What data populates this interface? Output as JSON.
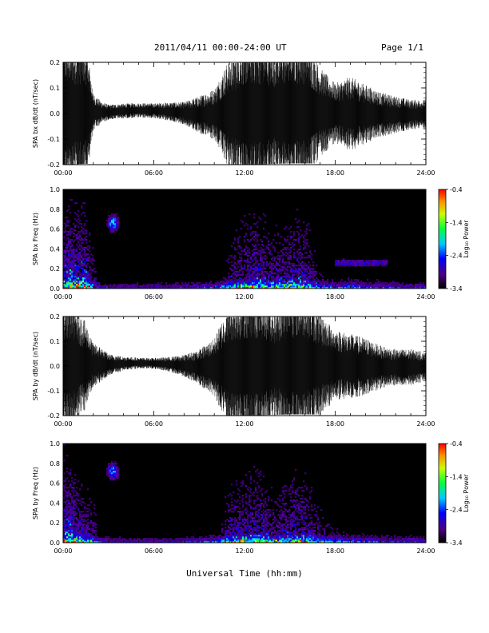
{
  "header": {
    "title": "2011/04/11   00:00-24:00 UT",
    "page": "Page 1/1"
  },
  "xlabel": "Universal Time (hh:mm)",
  "chart_data": [
    {
      "type": "line",
      "ylabel": "SPA bx dB/dt (nT/sec)",
      "ylim": [
        -0.2,
        0.2
      ],
      "yticks": [
        "-0.2",
        "-0.1",
        "0.0",
        "0.1",
        "0.2"
      ],
      "xticks": [
        "00:00",
        "06:00",
        "12:00",
        "18:00",
        "24:00"
      ],
      "xlim_hours": [
        0,
        24
      ],
      "series": [
        {
          "x": [
            0,
            0.5,
            1.0,
            1.5,
            2.0,
            2.5,
            3,
            4,
            5,
            6,
            7,
            8,
            9,
            10,
            11,
            12,
            13,
            14,
            15,
            16,
            17,
            18,
            19,
            20,
            21,
            22,
            23,
            24
          ],
          "values": [
            0.2,
            0.2,
            0.2,
            0.2,
            0.05,
            0.03,
            0.02,
            0.02,
            0.02,
            0.02,
            0.025,
            0.03,
            0.05,
            0.07,
            0.15,
            0.2,
            0.2,
            0.18,
            0.2,
            0.2,
            0.12,
            0.08,
            0.1,
            0.08,
            0.06,
            0.05,
            0.04,
            0.04
          ]
        }
      ]
    },
    {
      "type": "heatmap",
      "ylabel": "SPA bx Freq (Hz)",
      "ylim": [
        0.0,
        1.0
      ],
      "yticks": [
        "0.0",
        "0.2",
        "0.4",
        "0.6",
        "0.8",
        "1.0"
      ],
      "xticks": [
        "00:00",
        "06:00",
        "12:00",
        "18:00",
        "24:00"
      ],
      "xlim_hours": [
        0,
        24
      ],
      "colorbar": {
        "label": "Log₁₀ Power",
        "ticks": [
          "-0.4",
          "-1.4",
          "-2.4",
          "-3.4"
        ],
        "range": [
          -3.4,
          -0.4
        ]
      }
    },
    {
      "type": "line",
      "ylabel": "SPA by dB/dt (nT/sec)",
      "ylim": [
        -0.2,
        0.2
      ],
      "yticks": [
        "-0.2",
        "-0.1",
        "0.0",
        "0.1",
        "0.2"
      ],
      "xticks": [
        "00:00",
        "06:00",
        "12:00",
        "18:00",
        "24:00"
      ],
      "xlim_hours": [
        0,
        24
      ],
      "series": [
        {
          "x": [
            0,
            0.5,
            1.0,
            1.5,
            2.0,
            2.5,
            3,
            4,
            5,
            6,
            7,
            8,
            9,
            10,
            11,
            12,
            13,
            14,
            15,
            16,
            17,
            18,
            19,
            20,
            21,
            22,
            23,
            24
          ],
          "values": [
            0.2,
            0.2,
            0.15,
            0.12,
            0.06,
            0.05,
            0.03,
            0.02,
            0.015,
            0.015,
            0.02,
            0.03,
            0.05,
            0.08,
            0.18,
            0.2,
            0.2,
            0.16,
            0.2,
            0.2,
            0.14,
            0.1,
            0.09,
            0.08,
            0.06,
            0.05,
            0.05,
            0.04
          ]
        }
      ]
    },
    {
      "type": "heatmap",
      "ylabel": "SPA by Freq (Hz)",
      "ylim": [
        0.0,
        1.0
      ],
      "yticks": [
        "0.0",
        "0.2",
        "0.4",
        "0.6",
        "0.8",
        "1.0"
      ],
      "xticks": [
        "00:00",
        "06:00",
        "12:00",
        "18:00",
        "24:00"
      ],
      "xlim_hours": [
        0,
        24
      ],
      "colorbar": {
        "label": "Log₁₀ Power",
        "ticks": [
          "-0.4",
          "-1.4",
          "-2.4",
          "-3.4"
        ],
        "range": [
          -3.4,
          -0.4
        ]
      }
    }
  ]
}
